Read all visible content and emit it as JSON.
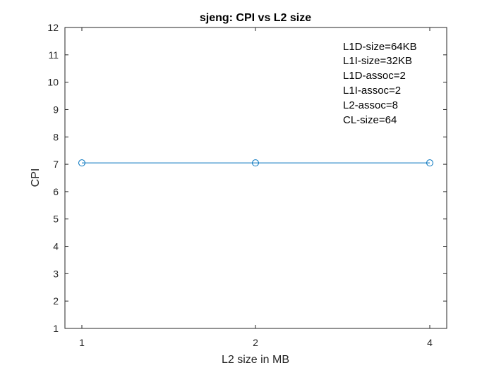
{
  "chart_data": {
    "type": "line",
    "title": "sjeng: CPI vs L2 size",
    "xlabel": "L2 size in MB",
    "ylabel": "CPI",
    "categories": [
      "1",
      "2",
      "4"
    ],
    "series": [
      {
        "values": [
          7.05,
          7.05,
          7.05
        ],
        "color": "#0072BD",
        "marker": "circle"
      }
    ],
    "ylim": [
      1,
      12
    ],
    "yticks": [
      "1",
      "2",
      "3",
      "4",
      "5",
      "6",
      "7",
      "8",
      "9",
      "10",
      "11",
      "12"
    ],
    "grid": false,
    "annotations": [
      "L1D-size=64KB",
      "L1I-size=32KB",
      "L1D-assoc=2",
      "L1I-assoc=2",
      "L2-assoc=8",
      "CL-size=64"
    ]
  }
}
